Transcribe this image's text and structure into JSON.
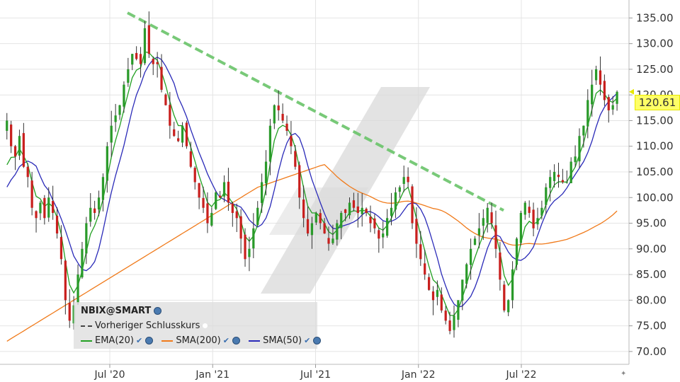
{
  "chart_data": {
    "type": "candlestick",
    "symbol": "NBIX@SMART",
    "y_axis": {
      "ticks": [
        70,
        75,
        80,
        85,
        90,
        95,
        100,
        105,
        110,
        115,
        120,
        125,
        130,
        135
      ],
      "tick_labels": [
        "70.00",
        "75.00",
        "80.00",
        "85.00",
        "90.00",
        "95.00",
        "100.00",
        "105.00",
        "110.00",
        "115.00",
        "120.00",
        "125.00",
        "130.00",
        "135.00"
      ],
      "ylim": [
        67.5,
        138.5
      ],
      "side": "right"
    },
    "x_axis": {
      "tick_labels": [
        "Jul '20",
        "Jan '21",
        "Jul '21",
        "Jan '22",
        "Jul '22"
      ],
      "tick_months": [
        2020.5,
        2021.0,
        2021.5,
        2022.0,
        2022.5
      ]
    },
    "grid": true,
    "last_price": "120.61",
    "closes": [
      115,
      110,
      108,
      112,
      106,
      104,
      98,
      96,
      99,
      96,
      100,
      97,
      93,
      88,
      80,
      76,
      79,
      85,
      90,
      95,
      98,
      97,
      100,
      104,
      110,
      114,
      116,
      118,
      122,
      125,
      128,
      127,
      126,
      133,
      128,
      126,
      126,
      121,
      118,
      114,
      112,
      111,
      114,
      110,
      106,
      103,
      100,
      98,
      95,
      97,
      101,
      100,
      103,
      99,
      97,
      96,
      92,
      88,
      90,
      94,
      98,
      103,
      107,
      114,
      118,
      117,
      115,
      113,
      110,
      106,
      100,
      96,
      93,
      95,
      97,
      95,
      93,
      91,
      92,
      95,
      97,
      97,
      99,
      98,
      97,
      98,
      97,
      95,
      94,
      92,
      93,
      96,
      98,
      101,
      102,
      104,
      103,
      95,
      91,
      88,
      85,
      82,
      80,
      82,
      78,
      76,
      74,
      77,
      80,
      84,
      87,
      90,
      92,
      94,
      96,
      98,
      95,
      90,
      84,
      78,
      80,
      86,
      92,
      97,
      99,
      97,
      94,
      96,
      98,
      102,
      104,
      105,
      104,
      103,
      103,
      107,
      108,
      112,
      114,
      119,
      122,
      125,
      122,
      119,
      117,
      118,
      120.61
    ],
    "trendline": {
      "from": [
        "Jul '20",
        136
      ],
      "to": [
        "Jul '22",
        97.5
      ],
      "style": "dashed",
      "color": "#6ac46a"
    },
    "legend": {
      "title": "NBIX@SMART",
      "items": [
        {
          "label": "Vorheriger Schlusskurs",
          "color": "#444444",
          "style": "dashed"
        },
        {
          "label": "EMA(20)",
          "color": "#22a022"
        },
        {
          "label": "SMA(200)",
          "color": "#f07a1a"
        },
        {
          "label": "SMA(50)",
          "color": "#2a2ab8"
        }
      ]
    },
    "colors": {
      "up": "#2a9a2a",
      "down": "#c8201e",
      "ema20": "#22a022",
      "sma200": "#f07a1a",
      "sma50": "#2a2ab8",
      "trend": "#6ac46a",
      "grid": "#e4e4e4",
      "watermark": "#d9d9d9"
    }
  }
}
